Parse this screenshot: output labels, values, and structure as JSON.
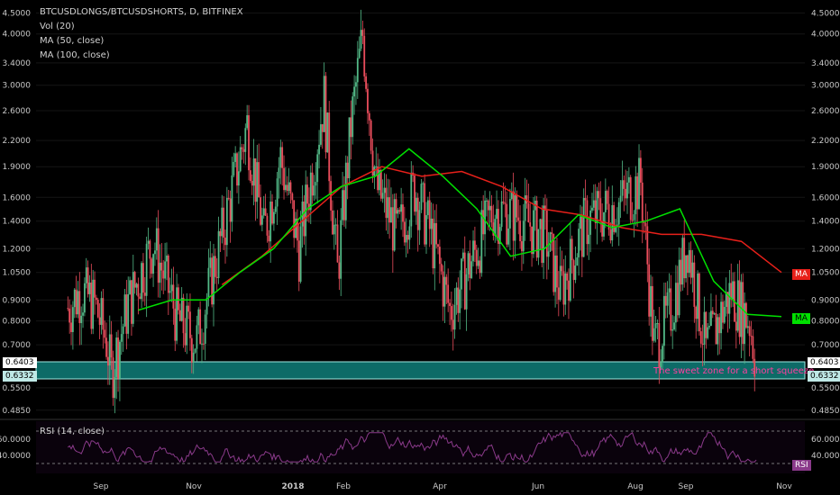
{
  "legend": {
    "symbol": "BTCUSDLONGS/BTCUSDSHORTS, D, BITFINEX",
    "vol": "Vol (20)",
    "ma50": "MA (50, close)",
    "ma100": "MA (100, close)"
  },
  "rsi_legend": "RSI (14, close)",
  "zone_label": "The sweet zone for a short squeeze",
  "badges": {
    "ma_red": "MA",
    "ma_green": "MA",
    "rsi": "RSI",
    "zone_top": "0.6403",
    "zone_bottom": "0.6332"
  },
  "colors": {
    "up": "#53b987",
    "down": "#eb4d5c",
    "ma50": "#00e000",
    "ma100": "#e8201a",
    "zone": "#0d6b67",
    "rsi": "#8a3a8a"
  },
  "chart_data": {
    "type": "candlestick",
    "title": "BTCUSDLONGS/BTCUSDSHORTS, D, BITFINEX",
    "y_scale": "log",
    "y_ticks": [
      "4.5000",
      "4.0000",
      "3.4000",
      "3.0000",
      "2.6000",
      "2.2000",
      "1.9000",
      "1.6000",
      "1.4000",
      "1.2000",
      "1.0500",
      "0.9000",
      "0.8000",
      "0.7000",
      "0.6403",
      "0.6332",
      "0.5500",
      "0.4850"
    ],
    "x_ticks": [
      "Sep",
      "Nov",
      "2018",
      "Feb",
      "Apr",
      "Jun",
      "Aug",
      "Sep",
      "Nov"
    ],
    "close_path": [
      {
        "x": "Aug 20",
        "y": 0.86
      },
      {
        "x": "Aug 28",
        "y": 0.95
      },
      {
        "x": "Sep 5",
        "y": 0.88
      },
      {
        "x": "Sep 12",
        "y": 0.72
      },
      {
        "x": "Sep 15",
        "y": 0.6
      },
      {
        "x": "Sep 25",
        "y": 0.88
      },
      {
        "x": "Oct 10",
        "y": 1.25
      },
      {
        "x": "Oct 25",
        "y": 0.8
      },
      {
        "x": "Nov 5",
        "y": 0.72
      },
      {
        "x": "Nov 20",
        "y": 1.3
      },
      {
        "x": "Dec 5",
        "y": 2.4
      },
      {
        "x": "Dec 15",
        "y": 1.3
      },
      {
        "x": "Dec 25",
        "y": 2.0
      },
      {
        "x": "Jan 5",
        "y": 1.2
      },
      {
        "x": "Jan 20",
        "y": 2.8
      },
      {
        "x": "Jan 28",
        "y": 1.05
      },
      {
        "x": "Feb 5",
        "y": 2.4
      },
      {
        "x": "Feb 12",
        "y": 4.0
      },
      {
        "x": "Feb 20",
        "y": 1.7
      },
      {
        "x": "Mar 5",
        "y": 1.3
      },
      {
        "x": "Mar 15",
        "y": 1.7
      },
      {
        "x": "Mar 25",
        "y": 1.3
      },
      {
        "x": "Apr 5",
        "y": 0.85
      },
      {
        "x": "Apr 15",
        "y": 1.05
      },
      {
        "x": "May 1",
        "y": 1.5
      },
      {
        "x": "May 15",
        "y": 1.45
      },
      {
        "x": "Jun 1",
        "y": 1.3
      },
      {
        "x": "Jun 10",
        "y": 0.95
      },
      {
        "x": "Jun 25",
        "y": 1.4
      },
      {
        "x": "Jul 15",
        "y": 1.55
      },
      {
        "x": "Jul 28",
        "y": 1.75
      },
      {
        "x": "Aug 5",
        "y": 0.7
      },
      {
        "x": "Aug 15",
        "y": 0.85
      },
      {
        "x": "Aug 25",
        "y": 1.25
      },
      {
        "x": "Sep 5",
        "y": 0.68
      },
      {
        "x": "Sep 20",
        "y": 0.95
      },
      {
        "x": "Oct 1",
        "y": 0.8
      },
      {
        "x": "Oct 5",
        "y": 0.64
      }
    ],
    "ma50": {
      "name": "MA (50, close)",
      "values": [
        0.85,
        0.9,
        0.9,
        1.05,
        1.2,
        1.5,
        1.7,
        1.8,
        2.1,
        1.8,
        1.5,
        1.15,
        1.2,
        1.45,
        1.35,
        1.4,
        1.5,
        1.0,
        0.83,
        0.82
      ]
    },
    "ma100": {
      "name": "MA (100, close)",
      "values": [
        0.98,
        1.15,
        1.4,
        1.7,
        1.9,
        1.8,
        1.85,
        1.7,
        1.5,
        1.45,
        1.35,
        1.3,
        1.3,
        1.25,
        1.05
      ]
    },
    "highlight_zone": {
      "top": 0.6403,
      "bottom": 0.6332,
      "label": "The sweet zone for a short squeeze"
    },
    "rsi": {
      "name": "RSI (14, close)",
      "y_ticks": [
        "60.0000",
        "40.0000"
      ],
      "upper": 70,
      "lower": 30
    }
  }
}
